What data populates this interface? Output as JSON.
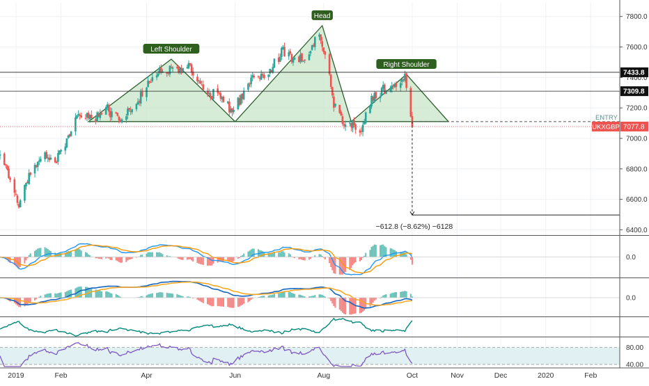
{
  "chart_data": {
    "type": "candlestick",
    "symbol_tag": "UKXGBP",
    "symbol_price": "7077.8",
    "entry_label": "ENTRY",
    "y_ticks": [
      6400,
      6600,
      6800,
      7000,
      7200,
      7400,
      7600,
      7800
    ],
    "y_tick_labels": [
      "6400.0",
      "6600.0",
      "6800.0",
      "7000.0",
      "7200.0",
      "7400.0",
      "7600.0",
      "7800.0"
    ],
    "ylim": [
      6370,
      7890
    ],
    "x_labels": [
      "2019",
      "Feb",
      "Apr",
      "Jun",
      "Aug",
      "Oct",
      "Nov",
      "Dec",
      "2020",
      "Feb"
    ],
    "x_dates": [
      "2019-01-01",
      "2019-02-01",
      "2019-04-01",
      "2019-06-01",
      "2019-08-01",
      "2019-10-01",
      "2019-11-01",
      "2019-12-01",
      "2020-01-01",
      "2020-02-01"
    ],
    "xlim": [
      "2018-12-21",
      "2020-02-21"
    ],
    "candles_range": {
      "start": "2018-12-21",
      "end": "2019-10-01"
    },
    "close_path": [
      [
        "2018-12-21",
        6880
      ],
      [
        "2018-12-31",
        6650
      ],
      [
        "2019-01-03",
        6560
      ],
      [
        "2019-01-10",
        6760
      ],
      [
        "2019-01-20",
        6900
      ],
      [
        "2019-01-28",
        6860
      ],
      [
        "2019-02-04",
        6950
      ],
      [
        "2019-02-12",
        7150
      ],
      [
        "2019-02-25",
        7140
      ],
      [
        "2019-03-05",
        7190
      ],
      [
        "2019-03-12",
        7120
      ],
      [
        "2019-03-22",
        7180
      ],
      [
        "2019-04-01",
        7350
      ],
      [
        "2019-04-12",
        7460
      ],
      [
        "2019-04-20",
        7450
      ],
      [
        "2019-04-30",
        7480
      ],
      [
        "2019-05-05",
        7420
      ],
      [
        "2019-05-12",
        7250
      ],
      [
        "2019-05-20",
        7320
      ],
      [
        "2019-05-30",
        7170
      ],
      [
        "2019-06-04",
        7250
      ],
      [
        "2019-06-12",
        7380
      ],
      [
        "2019-06-22",
        7400
      ],
      [
        "2019-07-04",
        7580
      ],
      [
        "2019-07-12",
        7520
      ],
      [
        "2019-07-22",
        7550
      ],
      [
        "2019-07-29",
        7690
      ],
      [
        "2019-08-03",
        7520
      ],
      [
        "2019-08-08",
        7220
      ],
      [
        "2019-08-14",
        7120
      ],
      [
        "2019-08-22",
        7080
      ],
      [
        "2019-08-27",
        7050
      ],
      [
        "2019-09-04",
        7280
      ],
      [
        "2019-09-12",
        7330
      ],
      [
        "2019-09-20",
        7330
      ],
      [
        "2019-09-26",
        7400
      ],
      [
        "2019-10-01",
        7080
      ]
    ],
    "horizontal_levels": [
      7433.8,
      7309.8
    ],
    "level_labels": [
      "7433.8",
      "7309.8"
    ],
    "current_price": 7077.8,
    "neckline": 7110,
    "pattern": {
      "type": "head_and_shoulders",
      "labels": [
        "Left Shoulder",
        "Head",
        "Right Shoulder"
      ],
      "points": [
        [
          "2019-02-20",
          7110
        ],
        [
          "2019-04-18",
          7520
        ],
        [
          "2019-06-01",
          7110
        ],
        [
          "2019-07-31",
          7740
        ],
        [
          "2019-08-20",
          7110
        ],
        [
          "2019-09-27",
          7420
        ],
        [
          "2019-10-26",
          7110
        ]
      ],
      "label_points": [
        [
          "2019-04-18",
          7520
        ],
        [
          "2019-07-31",
          7740
        ],
        [
          "2019-09-27",
          7420
        ]
      ]
    },
    "measure": {
      "start_date": "2019-10-01",
      "from": 7110,
      "to": 6497,
      "end_date": "2020-02-21",
      "text": "−612.8 (−8.62%) −6128"
    },
    "indicator_panels": [
      {
        "name": "macd-1",
        "zero_label": "0.0"
      },
      {
        "name": "macd-2",
        "zero_label": "0.0"
      },
      {
        "name": "line-3"
      },
      {
        "name": "rsi",
        "upper_label": "80.00",
        "lower_label": "40.00"
      }
    ]
  },
  "colors": {
    "up": "#26a69a",
    "down": "#ef5350",
    "pattern_fill": "#c8e6c9",
    "pattern_line": "#2e5f2e",
    "label_bg": "#2f5f1f",
    "macd_blue": "#2196f3",
    "macd_orange": "#ff9800",
    "teal_line": "#00897b",
    "rsi_line": "#7e57c2",
    "rsi_band": "#e0f0f3",
    "grid": "#eef1f5",
    "axis_text": "#333333"
  }
}
